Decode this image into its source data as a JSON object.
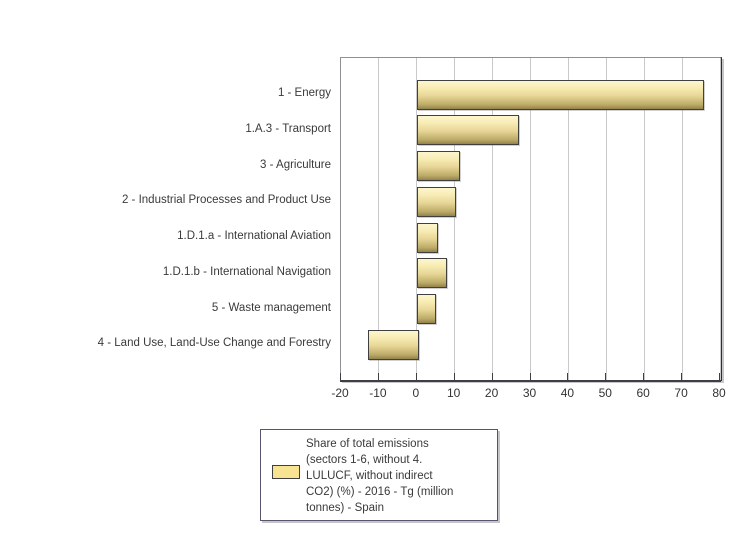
{
  "chart_data": {
    "type": "bar",
    "orientation": "horizontal",
    "title": "",
    "categories": [
      "1 - Energy",
      "1.A.3 - Transport",
      "3 - Agriculture",
      "2 - Industrial Processes and Product Use",
      "1.D.1.a - International Aviation",
      "1.D.1.b - International Navigation",
      "5 - Waste management",
      "4 - Land Use, Land-Use Change and Forestry"
    ],
    "values": [
      75.3,
      26.4,
      10.9,
      9.7,
      4.9,
      7.4,
      4.6,
      -13.0
    ],
    "series_name": "Share of total emissions (sectors 1-6, without 4. LULUCF, without indirect CO2) (%) - 2016 - Tg (million tonnes) - Spain",
    "xlabel": "",
    "ylabel": "",
    "xlim": [
      -20,
      80
    ],
    "xticks": [
      -20,
      -10,
      0,
      10,
      20,
      30,
      40,
      50,
      60,
      70,
      80
    ],
    "grid": true,
    "legend_position": "bottom-center"
  },
  "legend": {
    "lines": [
      "Share of total emissions",
      "(sectors 1-6, without 4.",
      "LULUCF, without indirect",
      "CO2) (%) - 2016 - Tg (million",
      "tonnes) - Spain"
    ],
    "swatch_color": "#F7E391"
  },
  "colors": {
    "bar_gradient_top": "#FDF6CE",
    "bar_gradient_bottom": "#93824A",
    "bar_border": "#404040",
    "gridline": "#C9C9C9",
    "axis_line": "#3F3F3F",
    "plot_border_right": "#26266E",
    "plot_border_gray": "#8F8F94",
    "text": "#3A3A3A"
  }
}
